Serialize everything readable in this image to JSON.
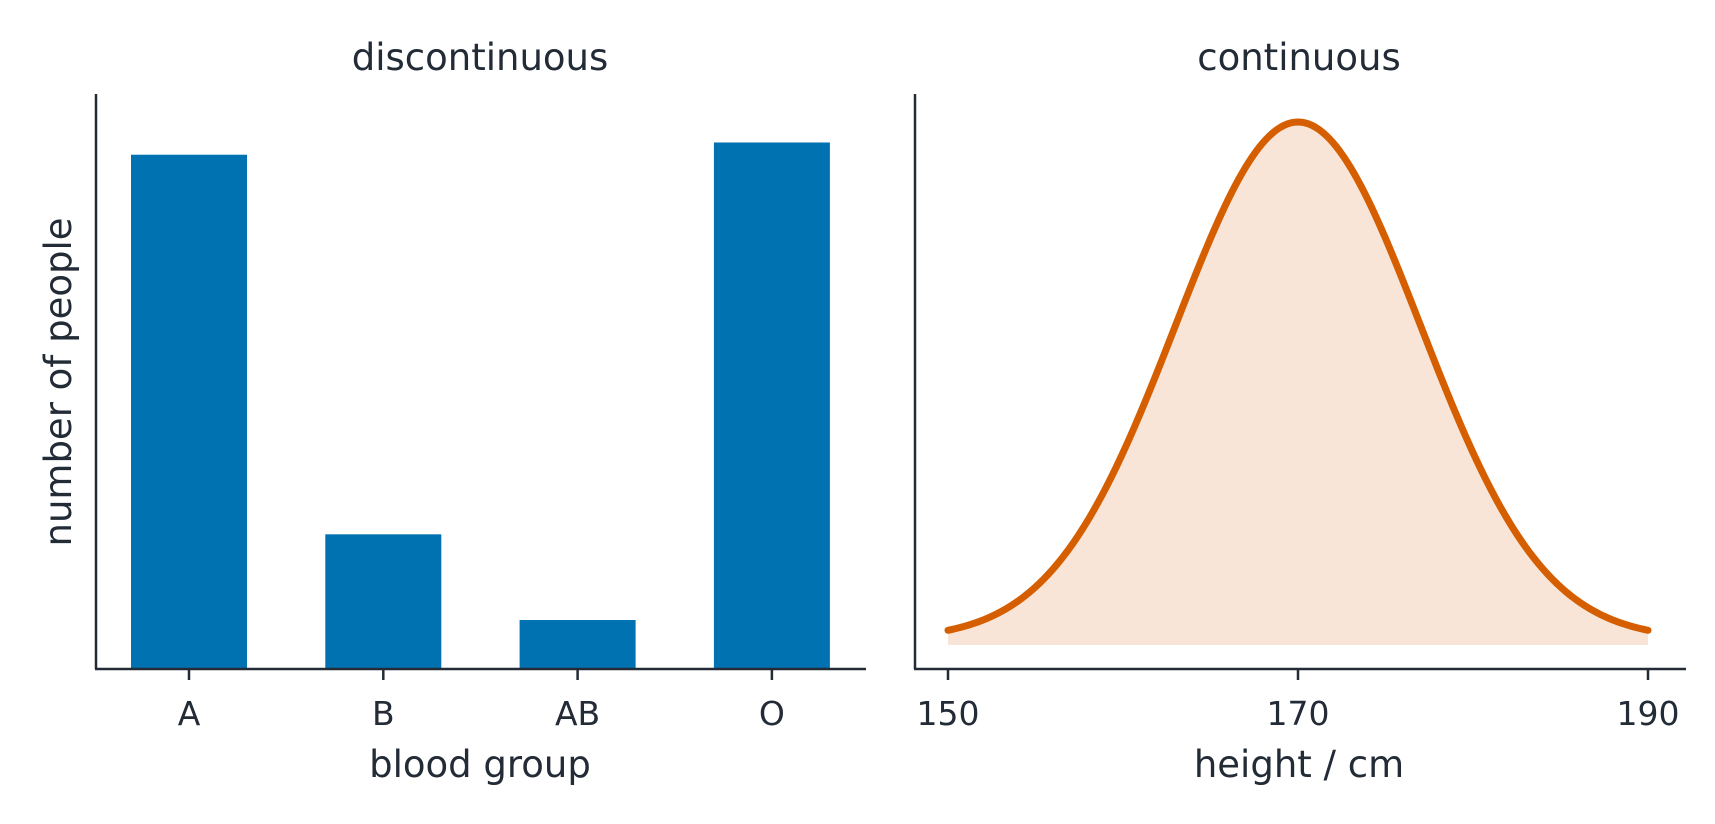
{
  "chart_data": [
    {
      "type": "bar",
      "title": "discontinuous",
      "xlabel": "blood group",
      "ylabel": "number of people",
      "categories": [
        "A",
        "B",
        "AB",
        "O"
      ],
      "values": [
        42,
        11,
        4,
        43
      ],
      "ylim": [
        0,
        45
      ],
      "show_y_ticks": false,
      "grid": false,
      "color": "#0072b2"
    },
    {
      "type": "area",
      "title": "continuous",
      "xlabel": "height / cm",
      "ylabel": "",
      "distribution": {
        "kind": "normal",
        "mean": 170,
        "sd": 7
      },
      "xlim": [
        150,
        190
      ],
      "xticks": [
        "150",
        "170",
        "190"
      ],
      "show_y_ticks": false,
      "grid": false,
      "line_color": "#d55e00",
      "fill_color": "#f8e5d8"
    }
  ]
}
